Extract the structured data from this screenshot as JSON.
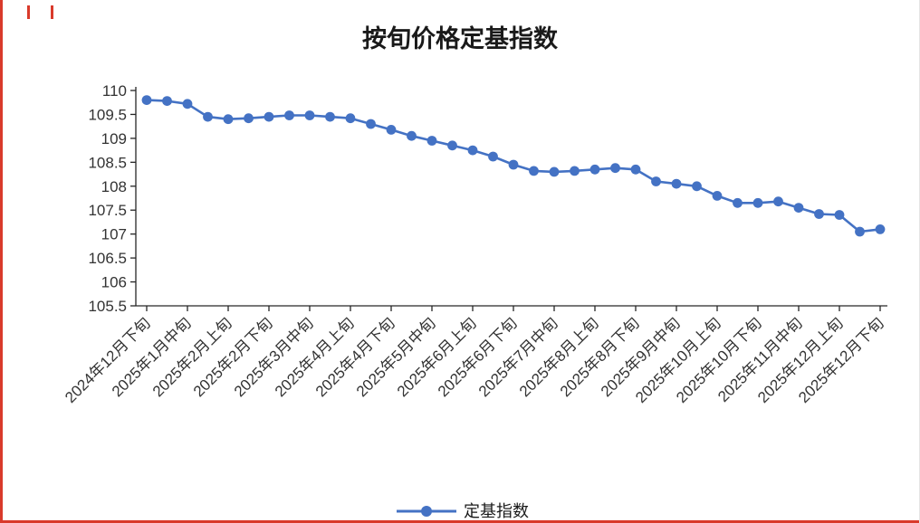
{
  "chart_data": {
    "type": "line",
    "title": "按旬价格定基指数",
    "series": [
      {
        "name": "定基指数",
        "color": "#4472C4",
        "values": [
          109.8,
          109.78,
          109.72,
          109.45,
          109.4,
          109.42,
          109.45,
          109.48,
          109.48,
          109.45,
          109.42,
          109.3,
          109.18,
          109.05,
          108.95,
          108.85,
          108.75,
          108.62,
          108.45,
          108.32,
          108.3,
          108.32,
          108.35,
          108.38,
          108.35,
          108.1,
          108.05,
          108.0,
          107.8,
          107.65,
          107.65,
          107.68,
          107.55,
          107.42,
          107.4,
          107.05,
          107.1
        ]
      }
    ],
    "x_tick_labels": [
      "2024年12月下旬",
      "2025年1月中旬",
      "2025年2月上旬",
      "2025年2月下旬",
      "2025年3月中旬",
      "2025年4月上旬",
      "2025年4月下旬",
      "2025年5月中旬",
      "2025年6月上旬",
      "2025年6月下旬",
      "2025年7月中旬",
      "2025年8月上旬",
      "2025年8月下旬",
      "2025年9月中旬",
      "2025年10月上旬",
      "2025年10月下旬",
      "2025年11月中旬",
      "2025年12月上旬",
      "2025年12月下旬"
    ],
    "x_tick_indices": [
      0,
      2,
      4,
      6,
      8,
      10,
      12,
      14,
      16,
      18,
      20,
      22,
      24,
      26,
      28,
      30,
      32,
      34,
      36
    ],
    "y_tick_labels": [
      "110",
      "109.5",
      "109",
      "108.5",
      "108",
      "107.5",
      "107",
      "106.5",
      "106",
      "105.5"
    ],
    "y_tick_values": [
      110,
      109.5,
      109,
      108.5,
      108,
      107.5,
      107,
      106.5,
      106,
      105.5
    ],
    "ylim": [
      105.5,
      110
    ],
    "grid": false,
    "legend": {
      "position": "bottom",
      "label": "定基指数"
    },
    "colors": {
      "line": "#4472C4",
      "axis": "#262626",
      "frame_accent": "#d93a2b"
    }
  }
}
